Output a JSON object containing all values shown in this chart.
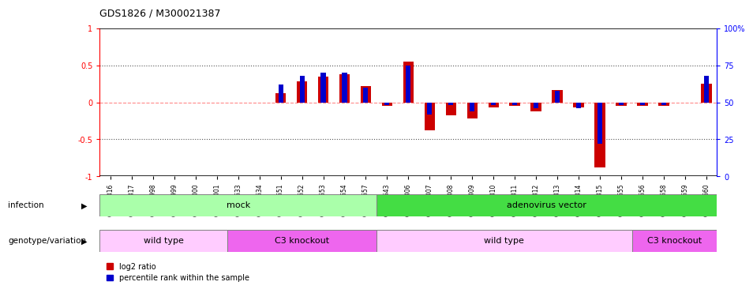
{
  "title": "GDS1826 / M300021387",
  "samples": [
    "GSM87316",
    "GSM87317",
    "GSM93998",
    "GSM93999",
    "GSM94000",
    "GSM94001",
    "GSM93633",
    "GSM93634",
    "GSM93651",
    "GSM93652",
    "GSM93653",
    "GSM93654",
    "GSM93657",
    "GSM86643",
    "GSM87306",
    "GSM87307",
    "GSM87308",
    "GSM87309",
    "GSM87310",
    "GSM87311",
    "GSM87312",
    "GSM87313",
    "GSM87314",
    "GSM87315",
    "GSM93655",
    "GSM93656",
    "GSM93658",
    "GSM93659",
    "GSM93660"
  ],
  "log2_ratio": [
    0.0,
    0.0,
    0.0,
    0.0,
    0.0,
    0.0,
    0.0,
    0.0,
    0.12,
    0.28,
    0.35,
    0.38,
    0.22,
    -0.05,
    0.55,
    -0.38,
    -0.18,
    -0.22,
    -0.07,
    -0.05,
    -0.12,
    0.17,
    -0.07,
    -0.88,
    -0.05,
    -0.05,
    -0.05,
    0.0,
    0.25
  ],
  "percentile_rank": [
    50,
    50,
    50,
    50,
    50,
    50,
    50,
    50,
    62,
    68,
    70,
    70,
    60,
    48,
    75,
    42,
    48,
    44,
    48,
    48,
    46,
    58,
    46,
    22,
    48,
    48,
    48,
    50,
    68
  ],
  "infection_groups": [
    {
      "label": "mock",
      "start": 0,
      "end": 13,
      "color": "#aaffaa"
    },
    {
      "label": "adenovirus vector",
      "start": 13,
      "end": 29,
      "color": "#44dd44"
    }
  ],
  "genotype_groups": [
    {
      "label": "wild type",
      "start": 0,
      "end": 6,
      "color": "#ffccff"
    },
    {
      "label": "C3 knockout",
      "start": 6,
      "end": 13,
      "color": "#ee66ee"
    },
    {
      "label": "wild type",
      "start": 13,
      "end": 25,
      "color": "#ffccff"
    },
    {
      "label": "C3 knockout",
      "start": 25,
      "end": 29,
      "color": "#ee66ee"
    }
  ],
  "bar_color_red": "#cc0000",
  "bar_color_blue": "#0000cc",
  "zero_line_color": "#ff8888",
  "dotted_line_color": "#555555",
  "ylim": [
    -1,
    1
  ],
  "y_right_ticks": [
    0,
    25,
    50,
    75,
    100
  ],
  "y_right_labels": [
    "0",
    "25",
    "50",
    "75",
    "100%"
  ],
  "y_left_ticks": [
    -1,
    -0.5,
    0,
    0.5,
    1
  ],
  "infection_label": "infection",
  "genotype_label": "genotype/variation",
  "legend_red": "log2 ratio",
  "legend_blue": "percentile rank within the sample"
}
